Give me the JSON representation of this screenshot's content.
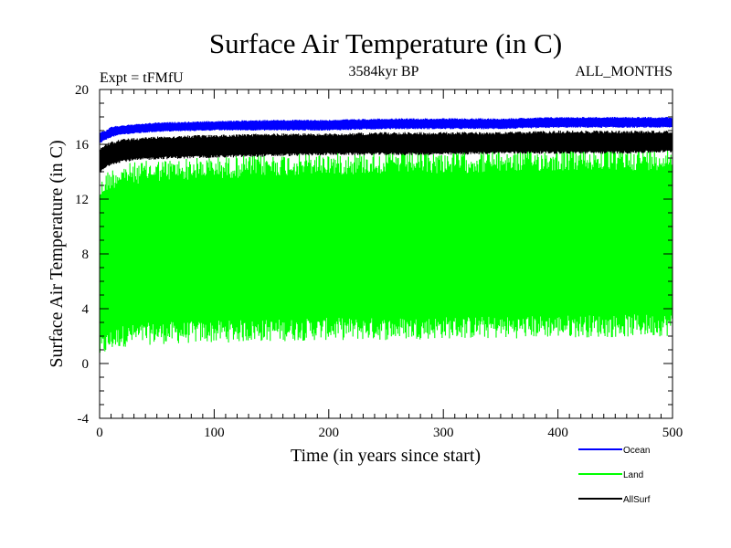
{
  "chart_data": {
    "type": "line",
    "title": "Surface Air Temperature (in C)",
    "subtitle": "3584kyr BP",
    "expt_label": "Expt = tFMfU",
    "months_label": "ALL_MONTHS",
    "xlabel": "Time (in years since start)",
    "ylabel": "Surface Air Temperature (in C)",
    "xlim": [
      0,
      500
    ],
    "ylim": [
      -4,
      20
    ],
    "xticks": [
      0,
      100,
      200,
      300,
      400,
      500
    ],
    "yticks": [
      -4,
      0,
      4,
      8,
      12,
      16,
      20
    ],
    "grid": false,
    "legend_position": "bottom-right",
    "series": [
      {
        "name": "Ocean",
        "color": "#0000ff",
        "x": [
          0,
          5,
          10,
          20,
          50,
          100,
          150,
          200,
          250,
          300,
          350,
          400,
          450,
          500
        ],
        "upper": [
          16.9,
          17.0,
          17.3,
          17.4,
          17.6,
          17.7,
          17.8,
          17.8,
          17.9,
          17.9,
          17.9,
          18.0,
          18.0,
          18.0
        ],
        "lower": [
          16.0,
          16.3,
          16.5,
          16.7,
          16.9,
          17.0,
          17.0,
          17.0,
          17.1,
          17.1,
          17.1,
          17.2,
          17.2,
          17.2
        ]
      },
      {
        "name": "Land",
        "color": "#00ff00",
        "x": [
          0,
          5,
          10,
          20,
          50,
          100,
          150,
          200,
          250,
          300,
          350,
          400,
          450,
          500
        ],
        "upper": [
          13.2,
          14.0,
          14.3,
          14.6,
          14.9,
          15.1,
          15.3,
          15.4,
          15.5,
          15.5,
          15.6,
          15.7,
          15.7,
          15.8
        ],
        "lower": [
          0.3,
          0.6,
          0.9,
          1.2,
          1.4,
          1.5,
          1.6,
          1.7,
          1.7,
          1.8,
          1.8,
          1.9,
          1.9,
          2.0
        ]
      },
      {
        "name": "AllSurf",
        "color": "#000000",
        "x": [
          0,
          5,
          10,
          20,
          50,
          100,
          150,
          200,
          250,
          300,
          350,
          400,
          450,
          500
        ],
        "upper": [
          15.7,
          16.0,
          16.2,
          16.4,
          16.6,
          16.7,
          16.8,
          16.8,
          16.9,
          16.9,
          16.9,
          17.0,
          17.0,
          17.0
        ],
        "lower": [
          13.8,
          14.2,
          14.5,
          14.7,
          14.9,
          15.0,
          15.1,
          15.2,
          15.2,
          15.2,
          15.3,
          15.3,
          15.3,
          15.4
        ]
      }
    ]
  }
}
